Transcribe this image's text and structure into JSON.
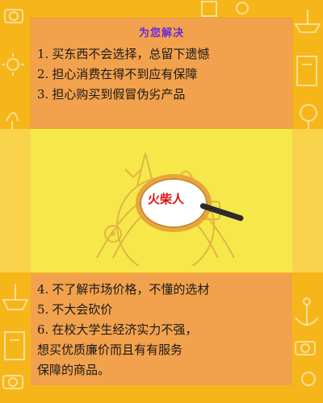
{
  "top_card": {
    "title": "为您解决",
    "items": [
      {
        "num": "1.",
        "text": "买东西不会选择，总留下遗憾"
      },
      {
        "num": "2.",
        "text": "担心消费在得不到应有保障"
      },
      {
        "num": "3.",
        "text": "担心购买到假冒伪劣产品"
      }
    ]
  },
  "center": {
    "logo_text": "火柴人"
  },
  "bottom_card": {
    "items": [
      {
        "num": "4.",
        "text": "不了解市场价格，不懂的选材"
      },
      {
        "num": "5.",
        "text": "不大会砍价"
      },
      {
        "num": "6.",
        "text": "在校大学生经济实力不强，"
      }
    ],
    "continuation": [
      "想买优质廉价而且有有服务",
      "保障的商品。"
    ]
  },
  "colors": {
    "background": "#f6b61a",
    "card": "#f2a14d",
    "band": "#f6e84a",
    "title": "#6b2bd6",
    "logo": "#e01010"
  },
  "icons": [
    "camera-icon",
    "anchor-icon",
    "ship-icon",
    "tree-icon",
    "clock-icon",
    "sun-icon",
    "building-icon"
  ]
}
